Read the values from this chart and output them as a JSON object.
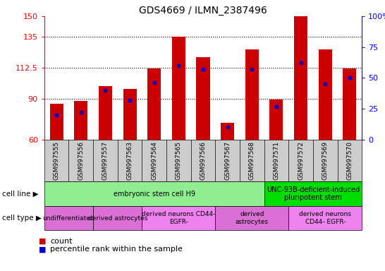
{
  "title": "GDS4669 / ILMN_2387496",
  "samples": [
    "GSM997555",
    "GSM997556",
    "GSM997557",
    "GSM997563",
    "GSM997564",
    "GSM997565",
    "GSM997566",
    "GSM997567",
    "GSM997568",
    "GSM997571",
    "GSM997572",
    "GSM997569",
    "GSM997570"
  ],
  "counts": [
    86,
    88,
    99,
    97,
    112,
    135,
    120,
    72,
    126,
    89,
    150,
    126,
    112
  ],
  "percentiles": [
    20,
    22,
    40,
    32,
    46,
    60,
    57,
    10,
    57,
    27,
    62,
    45,
    50
  ],
  "ylim_left": [
    60,
    150
  ],
  "ylim_right": [
    0,
    100
  ],
  "yticks_left": [
    60,
    90,
    112.5,
    135,
    150
  ],
  "yticks_right": [
    0,
    25,
    50,
    75,
    100
  ],
  "bar_color": "#cc0000",
  "dot_color": "#0000cc",
  "cell_line_groups": [
    {
      "label": "embryonic stem cell H9",
      "start": 0,
      "end": 9,
      "color": "#90EE90"
    },
    {
      "label": "UNC-93B-deficient-induced\npluripotent stem",
      "start": 9,
      "end": 13,
      "color": "#00dd00"
    }
  ],
  "cell_type_groups": [
    {
      "label": "undifferentiated",
      "start": 0,
      "end": 2,
      "color": "#da70d6"
    },
    {
      "label": "derived astrocytes",
      "start": 2,
      "end": 4,
      "color": "#da70d6"
    },
    {
      "label": "derived neurons CD44-\nEGFR-",
      "start": 4,
      "end": 7,
      "color": "#ee82ee"
    },
    {
      "label": "derived\nastrocytes",
      "start": 7,
      "end": 10,
      "color": "#da70d6"
    },
    {
      "label": "derived neurons\nCD44- EGFR-",
      "start": 10,
      "end": 13,
      "color": "#ee82ee"
    }
  ],
  "cell_line_label": "cell line",
  "cell_type_label": "cell type",
  "legend_count_label": "count",
  "legend_pct_label": "percentile rank within the sample",
  "xtick_bg": "#cccccc",
  "left_label_col": "#888888"
}
